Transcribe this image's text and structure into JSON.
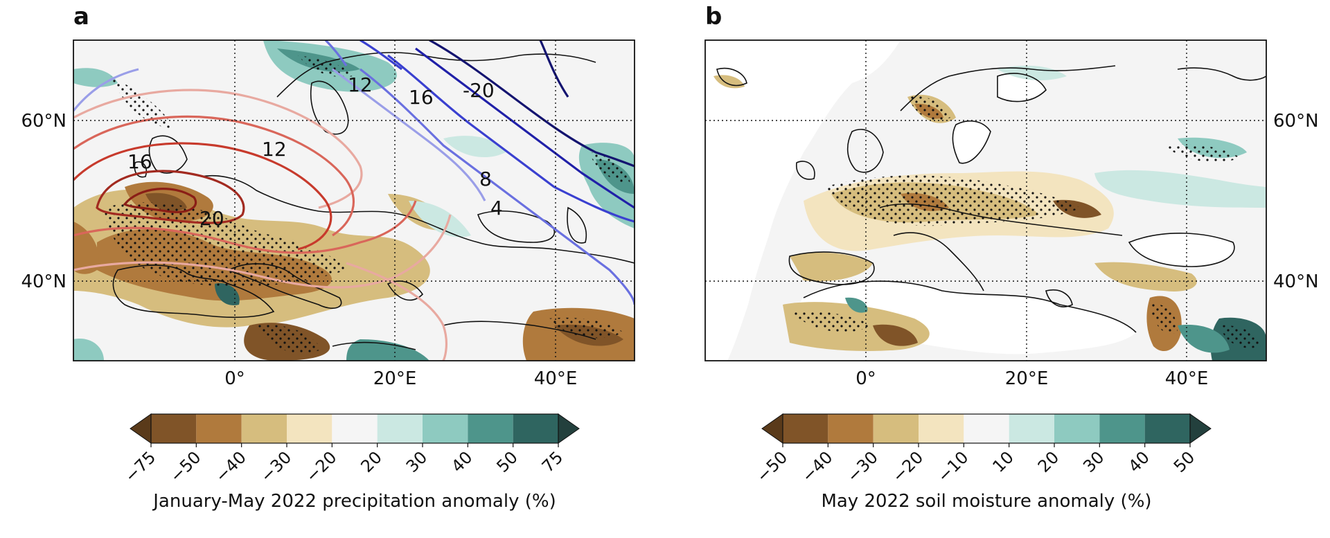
{
  "panels": [
    {
      "letter": "a",
      "lat_ticks": [
        "60°N",
        "40°N"
      ],
      "lon_ticks": [
        "0°",
        "20°E",
        "40°E"
      ],
      "contour_labels": [
        "16",
        "12",
        "20",
        "12",
        "16",
        "-20",
        "8",
        "4"
      ],
      "colorbar": {
        "ticks": [
          "−75",
          "−50",
          "−40",
          "−30",
          "−20",
          "20",
          "30",
          "40",
          "50",
          "75"
        ],
        "colors": [
          "#805428",
          "#b07a3d",
          "#d6bd7e",
          "#f3e4bf",
          "#f5f5f5",
          "#cbe8e2",
          "#8ecac0",
          "#4e958b",
          "#2f6560"
        ],
        "extend_low": "#5a3a1a",
        "extend_high": "#23403d",
        "label": "January-May 2022 precipitation anomaly (%)"
      }
    },
    {
      "letter": "b",
      "lat_ticks": [
        "60°N",
        "40°N"
      ],
      "lon_ticks": [
        "0°",
        "20°E",
        "40°E"
      ],
      "colorbar": {
        "ticks": [
          "−50",
          "−40",
          "−30",
          "−20",
          "−10",
          "10",
          "20",
          "30",
          "40",
          "50"
        ],
        "colors": [
          "#805428",
          "#b07a3d",
          "#d6bd7e",
          "#f3e4bf",
          "#f5f5f5",
          "#cbe8e2",
          "#8ecac0",
          "#4e958b",
          "#2f6560"
        ],
        "extend_low": "#5a3a1a",
        "extend_high": "#23403d",
        "label": "May 2022 soil moisture anomaly (%)"
      }
    }
  ]
}
